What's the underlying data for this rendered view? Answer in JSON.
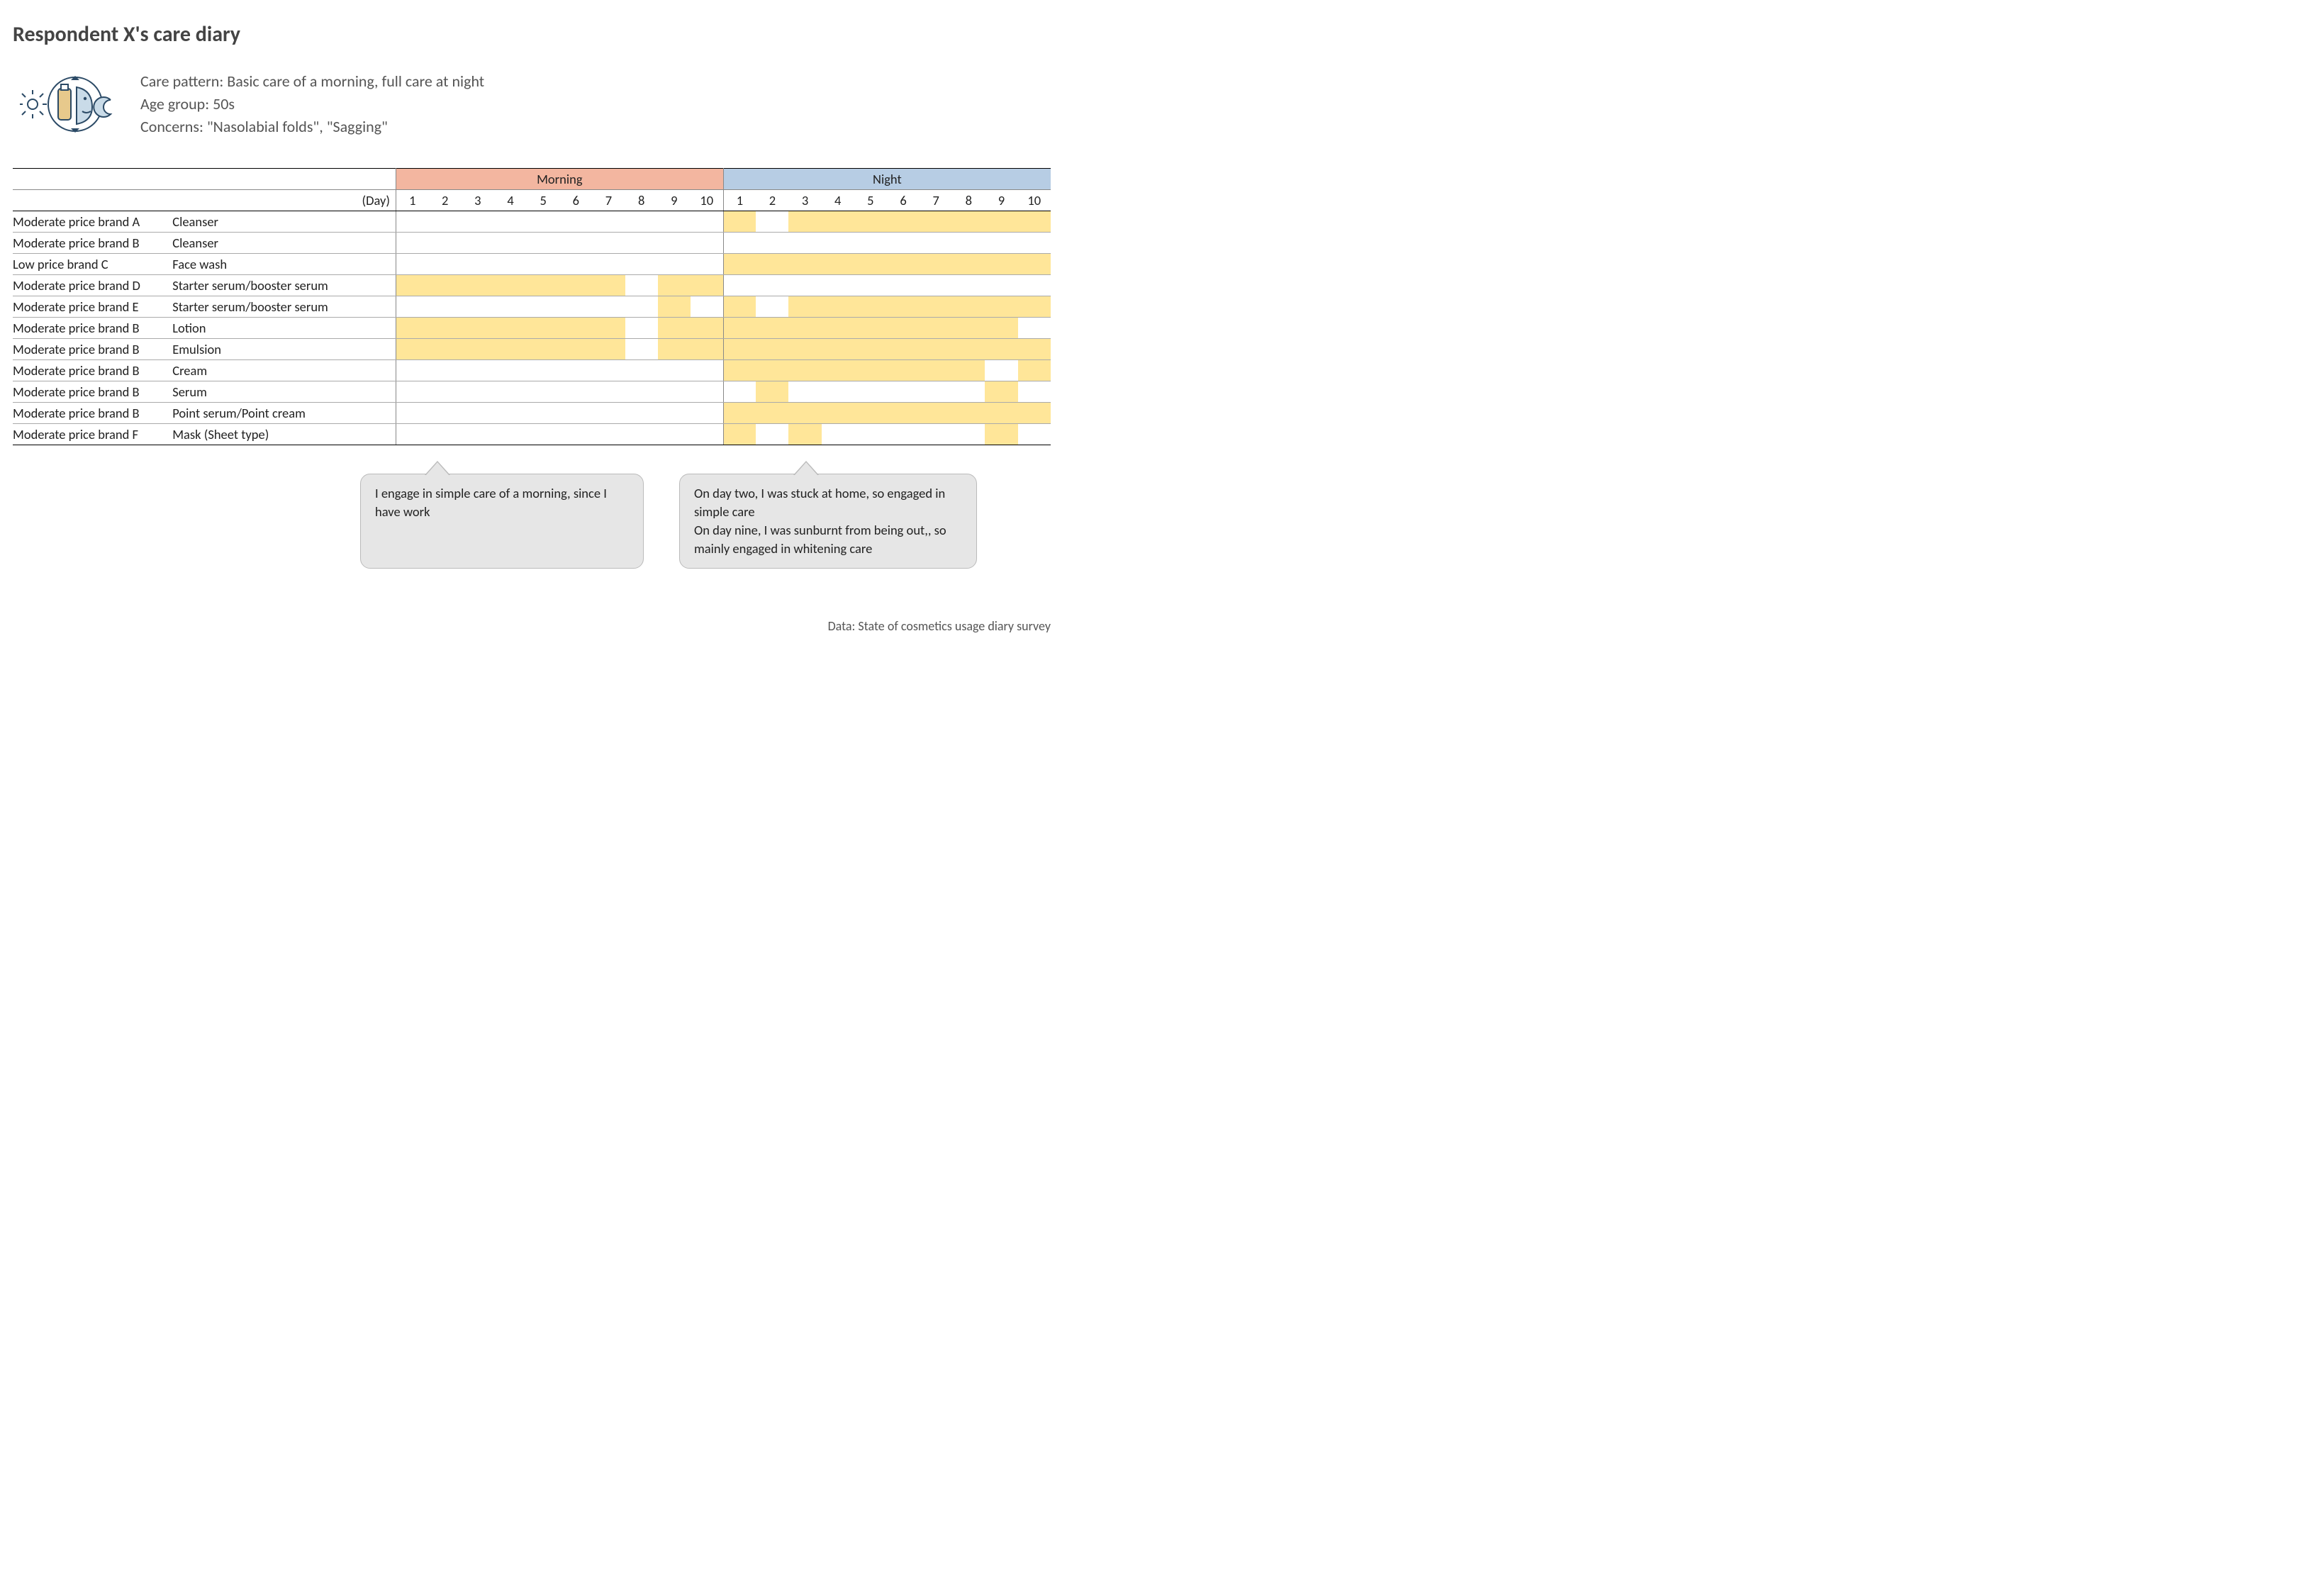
{
  "title": "Respondent X's care diary",
  "meta": {
    "pattern_label": "Care pattern:",
    "pattern": "Basic care of a morning, full care at night",
    "age_label": "Age group:",
    "age": "50s",
    "concerns_label": "Concerns:",
    "concerns": "\"Nasolabial folds\", \"Sagging\""
  },
  "table": {
    "day_label": "(Day)",
    "periods": [
      "Morning",
      "Night"
    ],
    "days": [
      1,
      2,
      3,
      4,
      5,
      6,
      7,
      8,
      9,
      10
    ],
    "colors": {
      "morning_hdr": "#f3b6a0",
      "night_hdr": "#b7cde4",
      "fill": "#ffe699"
    },
    "rows": [
      {
        "brand": "Moderate price brand A",
        "product": "Cleanser",
        "morning": [
          0,
          0,
          0,
          0,
          0,
          0,
          0,
          0,
          0,
          0
        ],
        "night": [
          1,
          0,
          1,
          1,
          1,
          1,
          1,
          1,
          1,
          1
        ]
      },
      {
        "brand": "Moderate price brand B",
        "product": "Cleanser",
        "morning": [
          0,
          0,
          0,
          0,
          0,
          0,
          0,
          0,
          0,
          0
        ],
        "night": [
          0,
          0,
          0,
          0,
          0,
          0,
          0,
          0,
          0,
          0
        ]
      },
      {
        "brand": "Low price brand C",
        "product": "Face wash",
        "morning": [
          0,
          0,
          0,
          0,
          0,
          0,
          0,
          0,
          0,
          0
        ],
        "night": [
          1,
          1,
          1,
          1,
          1,
          1,
          1,
          1,
          1,
          1
        ]
      },
      {
        "brand": "Moderate price brand D",
        "product": "Starter serum/booster serum",
        "morning": [
          1,
          1,
          1,
          1,
          1,
          1,
          1,
          0,
          1,
          1
        ],
        "night": [
          0,
          0,
          0,
          0,
          0,
          0,
          0,
          0,
          0,
          0
        ]
      },
      {
        "brand": "Moderate price brand E",
        "product": "Starter serum/booster serum",
        "morning": [
          0,
          0,
          0,
          0,
          0,
          0,
          0,
          0,
          1,
          0
        ],
        "night": [
          1,
          0,
          1,
          1,
          1,
          1,
          1,
          1,
          1,
          1
        ]
      },
      {
        "brand": "Moderate price brand B",
        "product": "Lotion",
        "morning": [
          1,
          1,
          1,
          1,
          1,
          1,
          1,
          0,
          1,
          1
        ],
        "night": [
          1,
          1,
          1,
          1,
          1,
          1,
          1,
          1,
          1,
          0
        ]
      },
      {
        "brand": "Moderate price brand B",
        "product": "Emulsion",
        "morning": [
          1,
          1,
          1,
          1,
          1,
          1,
          1,
          0,
          1,
          1
        ],
        "night": [
          1,
          1,
          1,
          1,
          1,
          1,
          1,
          1,
          1,
          1
        ]
      },
      {
        "brand": "Moderate price brand B",
        "product": "Cream",
        "morning": [
          0,
          0,
          0,
          0,
          0,
          0,
          0,
          0,
          0,
          0
        ],
        "night": [
          1,
          1,
          1,
          1,
          1,
          1,
          1,
          1,
          0,
          1
        ]
      },
      {
        "brand": "Moderate price brand B",
        "product": "Serum",
        "morning": [
          0,
          0,
          0,
          0,
          0,
          0,
          0,
          0,
          0,
          0
        ],
        "night": [
          0,
          1,
          0,
          0,
          0,
          0,
          0,
          0,
          1,
          0
        ]
      },
      {
        "brand": "Moderate price brand B",
        "product": "Point serum/Point cream",
        "morning": [
          0,
          0,
          0,
          0,
          0,
          0,
          0,
          0,
          0,
          0
        ],
        "night": [
          1,
          1,
          1,
          1,
          1,
          1,
          1,
          1,
          1,
          1
        ]
      },
      {
        "brand": "Moderate price brand F",
        "product": "Mask (Sheet type)",
        "morning": [
          0,
          0,
          0,
          0,
          0,
          0,
          0,
          0,
          0,
          0
        ],
        "night": [
          1,
          0,
          1,
          0,
          0,
          0,
          0,
          0,
          1,
          0
        ]
      }
    ]
  },
  "callouts": {
    "c1": "I engage in simple care of a morning, since I have work",
    "c2": "On day two, I was stuck at home, so engaged in simple care\nOn day nine, I was sunburnt from being out,, so mainly engaged in whitening care"
  },
  "footer": "Data: State of cosmetics usage diary survey"
}
